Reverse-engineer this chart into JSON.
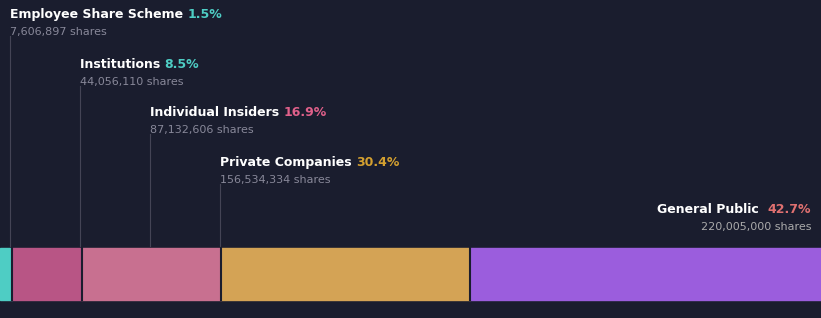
{
  "background_color": "#1a1d2e",
  "segments": [
    {
      "label": "Employee Share Scheme",
      "pct": "1.5%",
      "shares": "7,606,897 shares",
      "value": 1.5,
      "color": "#4ecdc4",
      "pct_color": "#4ecdc4",
      "shares_color": "#888899",
      "indent": 0,
      "align": "left"
    },
    {
      "label": "Institutions",
      "pct": "8.5%",
      "shares": "44,056,110 shares",
      "value": 8.5,
      "color": "#b85585",
      "pct_color": "#4ecdc4",
      "shares_color": "#888899",
      "indent": 1,
      "align": "left"
    },
    {
      "label": "Individual Insiders",
      "pct": "16.9%",
      "shares": "87,132,606 shares",
      "value": 16.9,
      "color": "#c87090",
      "pct_color": "#e0608a",
      "shares_color": "#888899",
      "indent": 2,
      "align": "left"
    },
    {
      "label": "Private Companies",
      "pct": "30.4%",
      "shares": "156,534,334 shares",
      "value": 30.4,
      "color": "#d4a355",
      "pct_color": "#d4a030",
      "shares_color": "#888899",
      "indent": 3,
      "align": "left"
    },
    {
      "label": "General Public",
      "pct": "42.7%",
      "shares": "220,005,000 shares",
      "value": 42.7,
      "color": "#9b5ddd",
      "pct_color": "#e07070",
      "shares_color": "#aaaaaa",
      "indent": 4,
      "align": "right"
    }
  ],
  "total": 100.0,
  "figsize": [
    8.21,
    3.18
  ],
  "dpi": 100
}
